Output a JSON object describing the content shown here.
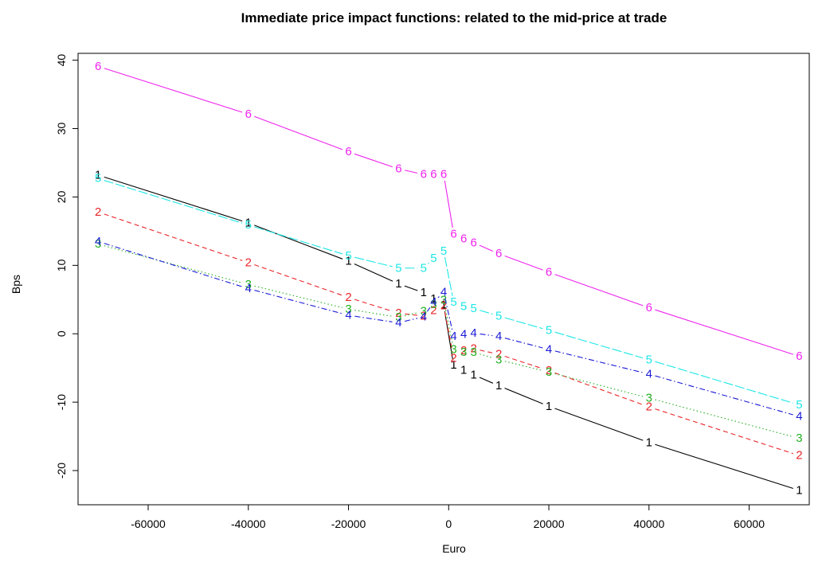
{
  "chart_data": {
    "type": "line",
    "title": "Immediate price impact functions: related to the mid-price at trade",
    "xlabel": "Euro",
    "ylabel": "Bps",
    "xlim": [
      -74000,
      72000
    ],
    "ylim": [
      -25,
      41
    ],
    "xticks": [
      -60000,
      -40000,
      -20000,
      0,
      20000,
      40000,
      60000
    ],
    "yticks": [
      -20,
      -10,
      0,
      10,
      20,
      30,
      40
    ],
    "grid": false,
    "legend": "none",
    "series": [
      {
        "marker": "1",
        "color": "#000000",
        "dash": "none",
        "x": [
          -70000,
          -40000,
          -20000,
          -10000,
          -5000,
          -3000,
          -1000,
          1000,
          3000,
          5000,
          10000,
          20000,
          40000,
          70000
        ],
        "y": [
          23.2,
          16.2,
          10.6,
          7.3,
          6.0,
          5.1,
          4.2,
          -4.6,
          -5.3,
          -6.0,
          -7.6,
          -10.6,
          -15.9,
          -22.9
        ]
      },
      {
        "marker": "2",
        "color": "#e8262b",
        "dash": "6,4",
        "x": [
          -70000,
          -40000,
          -20000,
          -10000,
          -5000,
          -3000,
          -1000,
          1000,
          3000,
          5000,
          10000,
          20000,
          40000,
          70000
        ],
        "y": [
          17.8,
          10.4,
          5.3,
          3.0,
          2.6,
          3.4,
          4.1,
          -3.6,
          -2.5,
          -2.2,
          -3.0,
          -5.4,
          -10.7,
          -17.8
        ]
      },
      {
        "marker": "3",
        "color": "#22b022",
        "dash": "1.5,3",
        "x": [
          -70000,
          -40000,
          -20000,
          -10000,
          -5000,
          -3000,
          -1000,
          1000,
          3000,
          5000,
          10000,
          20000,
          40000,
          70000
        ],
        "y": [
          13.1,
          7.2,
          3.6,
          2.4,
          3.3,
          4.3,
          4.9,
          -2.3,
          -2.7,
          -2.7,
          -3.8,
          -5.6,
          -9.4,
          -15.3
        ]
      },
      {
        "marker": "4",
        "color": "#1a1ad6",
        "dash": "7,3,1.5,3",
        "x": [
          -70000,
          -40000,
          -20000,
          -10000,
          -5000,
          -3000,
          -1000,
          1000,
          3000,
          5000,
          10000,
          20000,
          40000,
          70000
        ],
        "y": [
          13.5,
          6.6,
          2.7,
          1.6,
          2.5,
          4.6,
          6.1,
          -0.4,
          -0.1,
          0.1,
          -0.4,
          -2.3,
          -5.9,
          -12.1
        ]
      },
      {
        "marker": "5",
        "color": "#1ee6e6",
        "dash": "12,3",
        "x": [
          -70000,
          -40000,
          -20000,
          -10000,
          -5000,
          -3000,
          -1000,
          1000,
          3000,
          5000,
          10000,
          20000,
          40000,
          70000
        ],
        "y": [
          22.7,
          15.9,
          11.4,
          9.6,
          9.6,
          11.0,
          12.1,
          4.6,
          4.0,
          3.7,
          2.6,
          0.5,
          -3.8,
          -10.4
        ]
      },
      {
        "marker": "6",
        "color": "#ee22ee",
        "dash": "none",
        "x": [
          -70000,
          -40000,
          -20000,
          -10000,
          -5000,
          -3000,
          -1000,
          1000,
          3000,
          5000,
          10000,
          20000,
          40000,
          70000
        ],
        "y": [
          39.1,
          32.1,
          26.6,
          24.1,
          23.3,
          23.3,
          23.3,
          14.6,
          13.9,
          13.3,
          11.7,
          9.0,
          3.8,
          -3.3
        ]
      }
    ]
  }
}
